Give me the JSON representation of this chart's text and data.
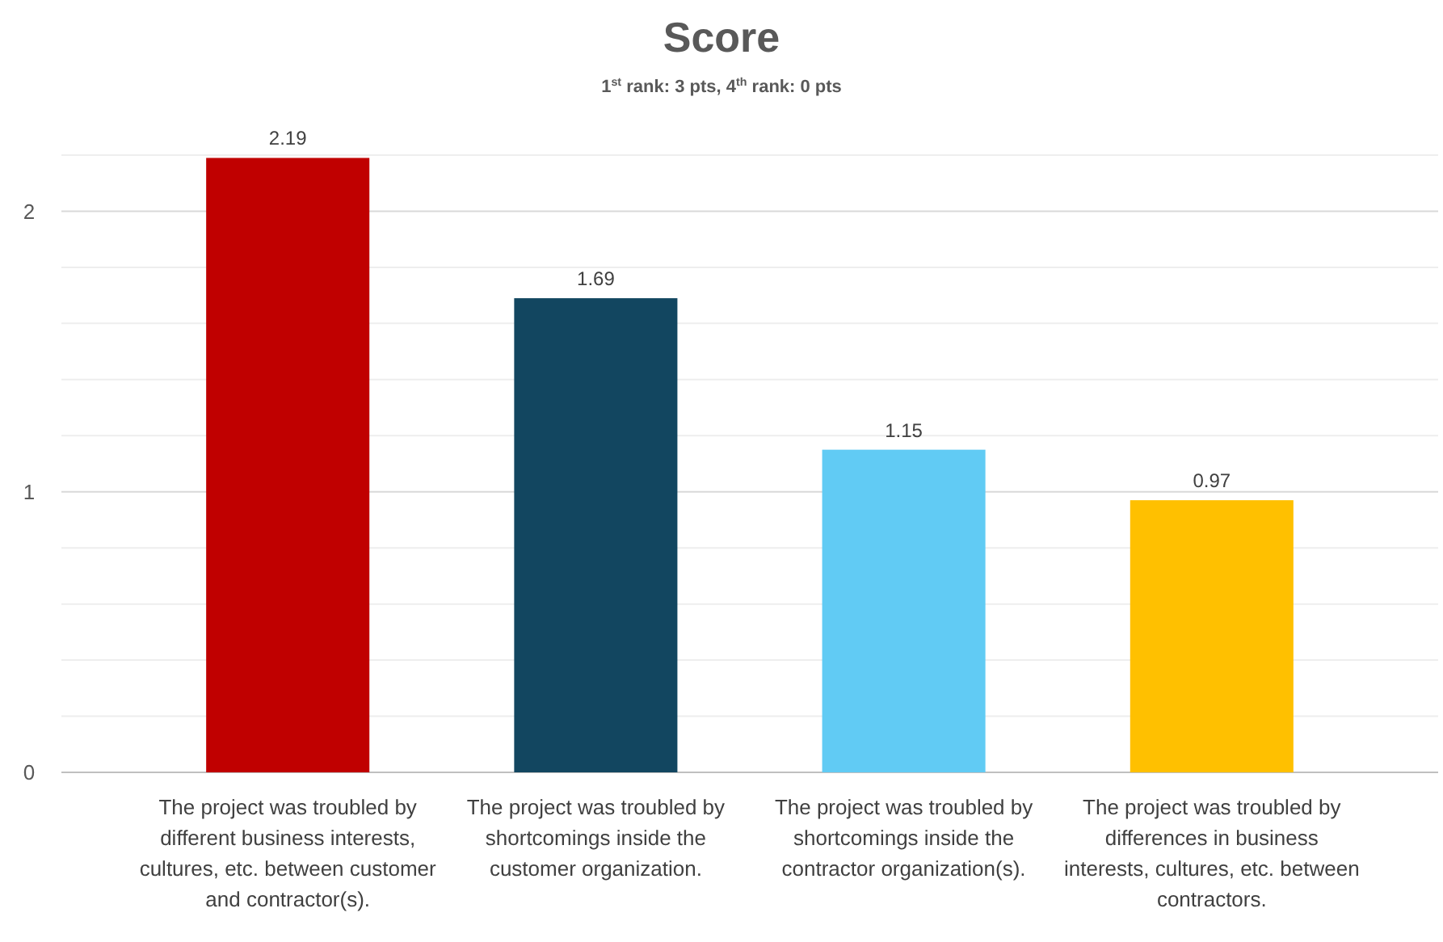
{
  "chart_data": {
    "type": "bar",
    "title": "Score",
    "subtitle": "1$^{st}$ rank: 3 pts, 4$^{th}$ rank: 0 pts",
    "categories": [
      "The project was troubled by different business interests, cultures, etc. between customer and contractor(s).",
      "The project was troubled by shortcomings inside the customer organization.",
      "The project was troubled by shortcomings inside the contractor organization(s).",
      "The project was troubled by differences in business interests, cultures, etc. between contractors."
    ],
    "values": [
      2.19,
      1.69,
      1.15,
      0.97
    ],
    "colors": [
      "#c00000",
      "#124660",
      "#61cbf4",
      "#ffc000"
    ],
    "ylim": [
      0,
      2.2
    ],
    "yticks": [
      0,
      {
        "value": 0.2,
        "label": null
      },
      {
        "value": 0.4,
        "label": null
      },
      {
        "value": 0.6,
        "label": null
      },
      {
        "value": 0.8,
        "label": null
      },
      1,
      {
        "value": 1.2,
        "label": null
      },
      {
        "value": 1.4,
        "label": null
      },
      {
        "value": 1.6,
        "label": null
      },
      {
        "value": 1.8,
        "label": null
      },
      2,
      {
        "value": 2.2,
        "label": null
      }
    ],
    "grid": true,
    "data_labels": true
  }
}
